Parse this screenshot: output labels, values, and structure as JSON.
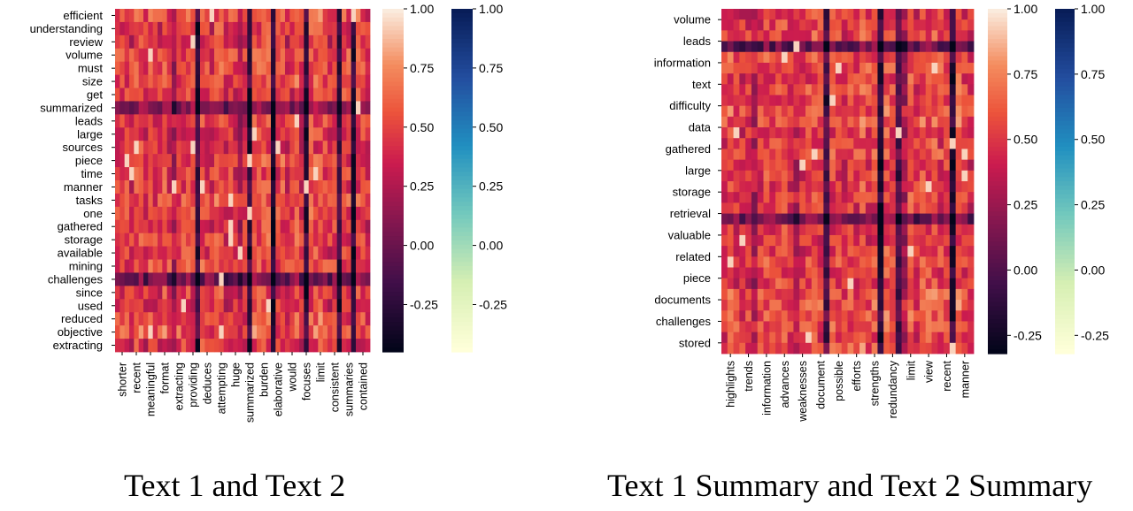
{
  "chart_data": [
    {
      "type": "heatmap",
      "caption": "Text 1 and Text 2",
      "y_tick_labels": [
        "efficient",
        "understanding",
        "review",
        "volume",
        "must",
        "size",
        "get",
        "summarized",
        "leads",
        "large",
        "sources",
        "piece",
        "time",
        "manner",
        "tasks",
        "one",
        "gathered",
        "storage",
        "available",
        "mining",
        "challenges",
        "since",
        "used",
        "reduced",
        "objective",
        "extracting"
      ],
      "x_tick_labels": [
        "shorter",
        "recent",
        "meaningful",
        "format",
        "extracting",
        "providing",
        "deduces",
        "attempting",
        "huge",
        "summarized",
        "burden",
        "elaborative",
        "would",
        "focuses",
        "limit",
        "consistent",
        "summaries",
        "contained"
      ],
      "colorbars": [
        {
          "colormap": "rocket",
          "ticks": [
            "1.00",
            "0.75",
            "0.50",
            "0.25",
            "0.00",
            "-0.25"
          ],
          "range": [
            -0.45,
            1.0
          ]
        },
        {
          "colormap": "YlGnBu",
          "ticks": [
            "1.00",
            "0.75",
            "0.50",
            "0.25",
            "0.00",
            "-0.25"
          ],
          "range": [
            -0.45,
            1.0
          ]
        }
      ],
      "colors": {
        "low": "#03051a",
        "mid": "#cb1b4f",
        "high": "#faebdd"
      }
    },
    {
      "type": "heatmap",
      "caption": "Text 1 Summary and Text 2 Summary",
      "y_tick_labels": [
        "volume",
        "leads",
        "information",
        "text",
        "difficulty",
        "data",
        "gathered",
        "large",
        "storage",
        "retrieval",
        "valuable",
        "related",
        "piece",
        "documents",
        "challenges",
        "stored"
      ],
      "x_tick_labels": [
        "highlights",
        "trends",
        "information",
        "advances",
        "weaknesses",
        "document",
        "possible",
        "efforts",
        "strengths",
        "redundancy",
        "limit",
        "view",
        "recent",
        "manner"
      ],
      "colorbars": [
        {
          "colormap": "rocket",
          "ticks": [
            "1.00",
            "0.75",
            "0.50",
            "0.25",
            "0.00",
            "-0.25"
          ],
          "range": [
            -0.32,
            1.0
          ]
        },
        {
          "colormap": "YlGnBu",
          "ticks": [
            "1.00",
            "0.75",
            "0.50",
            "0.25",
            "0.00",
            "-0.25"
          ],
          "range": [
            -0.32,
            1.0
          ]
        }
      ],
      "colors": {
        "low": "#03051a",
        "mid": "#cb1b4f",
        "high": "#faebdd"
      }
    }
  ]
}
